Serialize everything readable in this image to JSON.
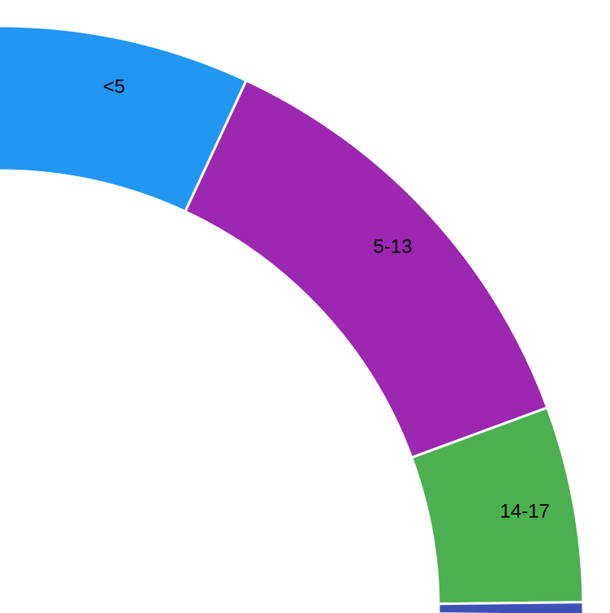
{
  "chart_data": {
    "type": "pie",
    "variant": "donut-quarter",
    "categories": [
      "<5",
      "5-13",
      "14-17",
      ""
    ],
    "values": [
      22.0,
      39.0,
      17.0,
      1.1
    ],
    "colors": [
      "#2196F3",
      "#9C27B0",
      "#4CAF50",
      "#3F51B5"
    ],
    "title": "",
    "legend": "none",
    "grid": false
  }
}
